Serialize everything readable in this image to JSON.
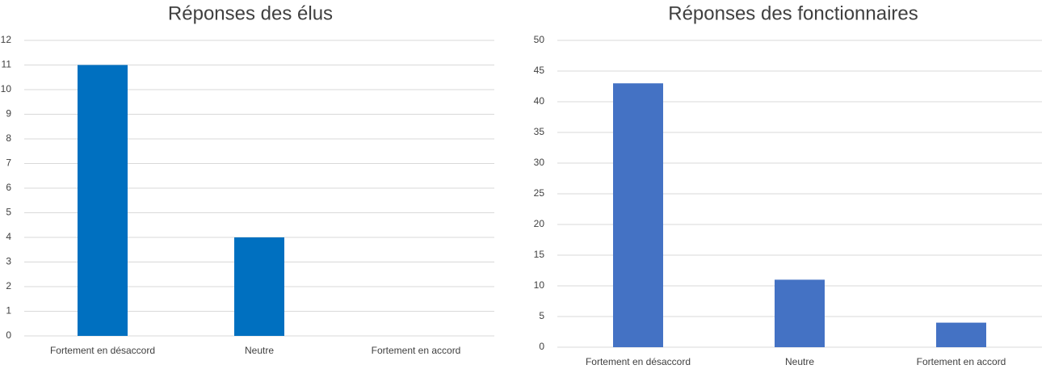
{
  "chart_data": [
    {
      "type": "bar",
      "title": "Réponses des élus",
      "categories": [
        "Fortement en désaccord",
        "Neutre",
        "Fortement en accord"
      ],
      "values": [
        11,
        4,
        0
      ],
      "color": "#0070c0",
      "ylim": [
        0,
        12
      ],
      "yticks": [
        0,
        1,
        2,
        3,
        4,
        5,
        6,
        7,
        8,
        9,
        10,
        11,
        12
      ],
      "grid": true
    },
    {
      "type": "bar",
      "title": "Réponses des fonctionnaires",
      "categories": [
        "Fortement en désaccord",
        "Neutre",
        "Fortement en accord"
      ],
      "values": [
        43,
        11,
        4
      ],
      "color": "#4472c4",
      "ylim": [
        0,
        50
      ],
      "yticks": [
        0,
        5,
        10,
        15,
        20,
        25,
        30,
        35,
        40,
        45,
        50
      ],
      "grid": true
    }
  ]
}
